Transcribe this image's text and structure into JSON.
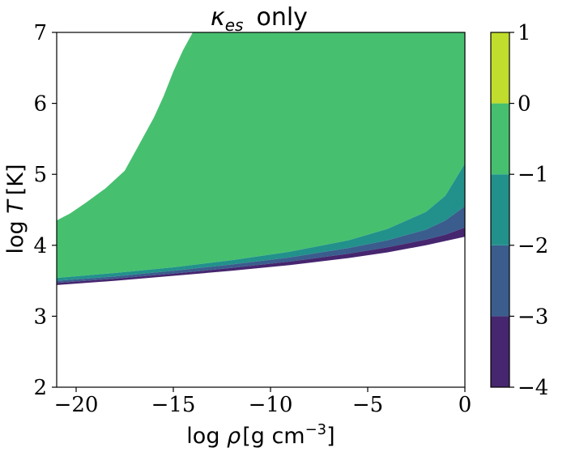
{
  "chart_data": {
    "type": "filled-contour",
    "title_symbol": "κ",
    "title_subscript": "es",
    "title_suffix": "only",
    "xlabel_prefix": "log ",
    "xlabel_symbol": "ρ",
    "xlabel_unit": "[g cm",
    "xlabel_exp": "−3",
    "xlabel_close": "]",
    "ylabel_prefix": "log ",
    "ylabel_symbol": "T",
    "ylabel_unit": "[K]",
    "xlim": [
      -21,
      0
    ],
    "ylim": [
      2,
      7
    ],
    "xticks": [
      -20,
      -15,
      -10,
      -5,
      0
    ],
    "xtick_labels": [
      "−20",
      "−15",
      "−10",
      "−5",
      "0"
    ],
    "yticks": [
      2,
      3,
      4,
      5,
      6,
      7
    ],
    "ytick_labels": [
      "2",
      "3",
      "4",
      "5",
      "6",
      "7"
    ],
    "colorbar": {
      "levels": [
        -4,
        -3,
        -2,
        -1,
        0,
        1
      ],
      "tick_labels": [
        "−4",
        "−3",
        "−2",
        "−1",
        "0",
        "1"
      ],
      "colors": [
        "#46266f",
        "#3a5d8d",
        "#22918b",
        "#46c06f",
        "#c0dc2d"
      ]
    },
    "regions": {
      "green_upper_left_boundary": [
        [
          -21,
          4.35
        ],
        [
          -20.3,
          4.45
        ],
        [
          -19.5,
          4.6
        ],
        [
          -18.5,
          4.8
        ],
        [
          -17.5,
          5.05
        ],
        [
          -16.8,
          5.4
        ],
        [
          -16,
          5.8
        ],
        [
          -15.5,
          6.1
        ],
        [
          -15,
          6.45
        ],
        [
          -14.5,
          6.75
        ],
        [
          -14,
          7.0
        ]
      ],
      "bottom_boundary": [
        [
          -21,
          3.44
        ],
        [
          -18,
          3.5
        ],
        [
          -15,
          3.57
        ],
        [
          -12,
          3.64
        ],
        [
          -9,
          3.72
        ],
        [
          -6,
          3.82
        ],
        [
          -4,
          3.9
        ],
        [
          -2,
          4.0
        ],
        [
          0,
          4.12
        ]
      ],
      "contour_minus3": [
        [
          -21,
          3.47
        ],
        [
          -18,
          3.53
        ],
        [
          -15,
          3.6
        ],
        [
          -12,
          3.68
        ],
        [
          -9,
          3.77
        ],
        [
          -6,
          3.88
        ],
        [
          -4,
          3.97
        ],
        [
          -2,
          4.08
        ],
        [
          -1,
          4.15
        ],
        [
          0,
          4.25
        ]
      ],
      "contour_minus2": [
        [
          -21,
          3.5
        ],
        [
          -18,
          3.56
        ],
        [
          -15,
          3.64
        ],
        [
          -12,
          3.73
        ],
        [
          -9,
          3.83
        ],
        [
          -6,
          3.96
        ],
        [
          -4,
          4.07
        ],
        [
          -2,
          4.22
        ],
        [
          -1,
          4.35
        ],
        [
          0,
          4.55
        ]
      ],
      "contour_minus1": [
        [
          -21,
          3.54
        ],
        [
          -18,
          3.61
        ],
        [
          -15,
          3.69
        ],
        [
          -12,
          3.79
        ],
        [
          -9,
          3.91
        ],
        [
          -6,
          4.07
        ],
        [
          -4,
          4.23
        ],
        [
          -2,
          4.47
        ],
        [
          -1,
          4.7
        ],
        [
          0,
          5.15
        ]
      ]
    }
  }
}
